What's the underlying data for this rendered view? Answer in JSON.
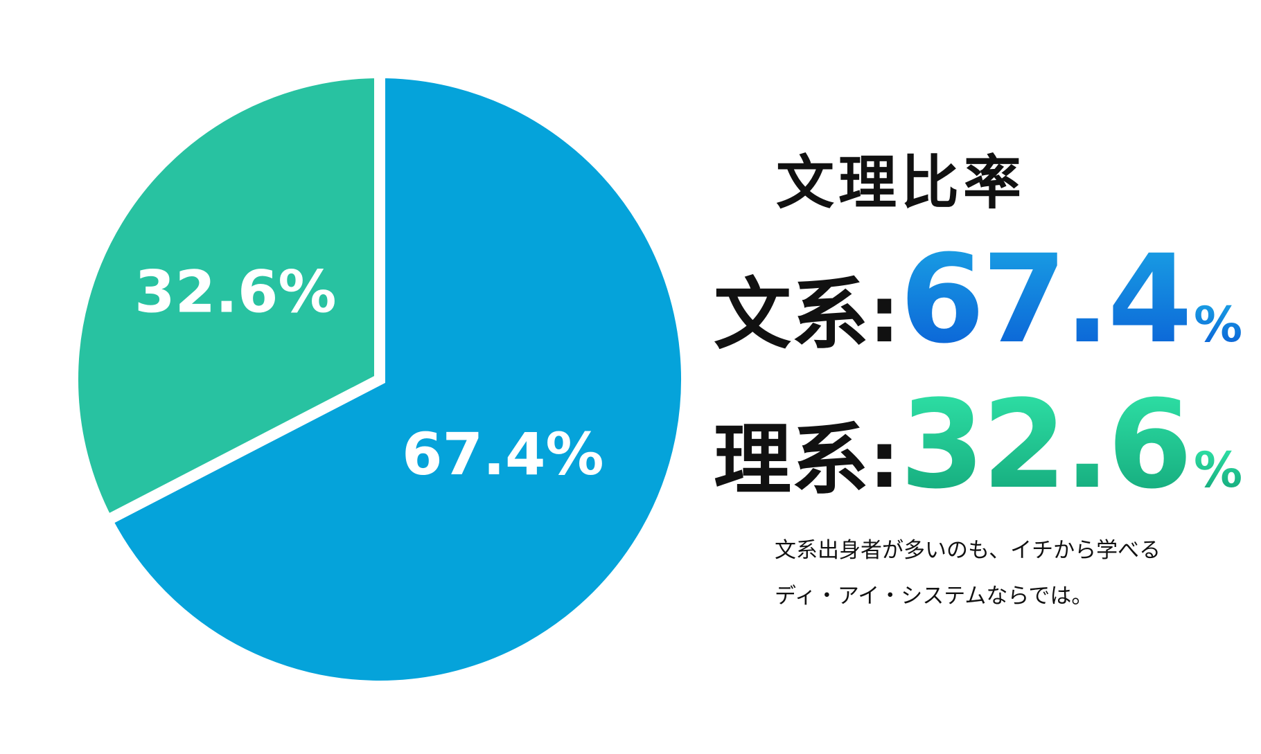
{
  "chart_data": {
    "type": "pie",
    "categories": [
      "文系",
      "理系"
    ],
    "values": [
      67.4,
      32.6
    ],
    "unit": "%",
    "slice_labels": [
      "67.4%",
      "32.6%"
    ],
    "colors": [
      "#05a3da",
      "#28c2a1"
    ],
    "title": "文理比率"
  },
  "panel": {
    "title": "文理比率",
    "rows": [
      {
        "label": "文系:",
        "value": "67.4",
        "unit": "%",
        "color": "#0a6ad9"
      },
      {
        "label": "理系:",
        "value": "32.6",
        "unit": "%",
        "color": "#1cc08d"
      }
    ],
    "caption_line1": "文系出身者が多いのも、イチから学べる",
    "caption_line2": "ディ・アイ・システムならでは。"
  }
}
